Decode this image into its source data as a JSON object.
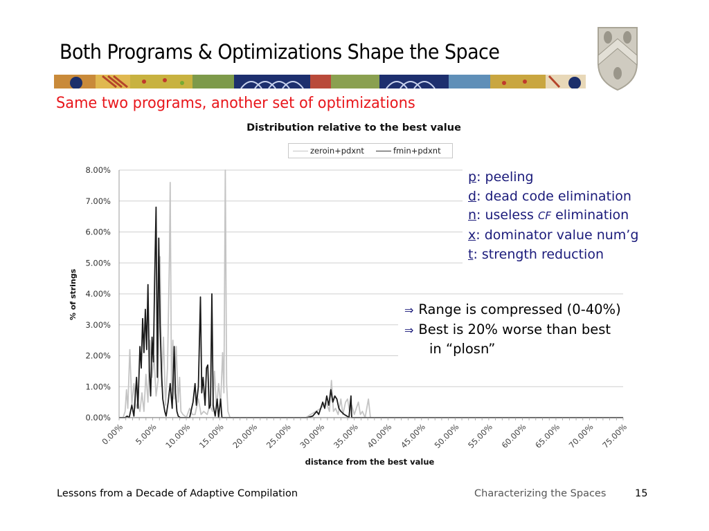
{
  "slide": {
    "title": "Both Programs & Optimizations Shape the Space",
    "subtitle": "Same two programs, another set of optimizations",
    "abbreviations": [
      {
        "key": "p",
        "text": ": peeling"
      },
      {
        "key": "d",
        "text": ": dead code elimination"
      },
      {
        "key": "n",
        "text": ": useless ",
        "cf": "CF",
        "text2": " elimination"
      },
      {
        "key": "x",
        "text": ": dominator value num’g"
      },
      {
        "key": "t",
        "text": ": strength reduction"
      }
    ],
    "bullets": [
      {
        "arrow": "⇒",
        "text": "Range is compressed (0-40%)"
      },
      {
        "arrow": "⇒",
        "text": "Best is 20% worse than best",
        "continuation": "in “plosn”"
      }
    ],
    "footer": {
      "left": "Lessons from a Decade of Adaptive Compilation",
      "right": "Characterizing the Spaces",
      "page": "15"
    },
    "crest_icon": "shield-crest-icon",
    "banner_icon": "decorative-pattern-banner",
    "colors": {
      "title": "#000000",
      "subtitle": "#e8161b",
      "abbrev": "#1a1a7a",
      "series_light": "#c4c4c4",
      "series_dark": "#1a1a1a"
    }
  },
  "chart_data": {
    "type": "line",
    "title": "Distribution relative to the best value",
    "xlabel": "distance from the best value",
    "ylabel": "% of strings",
    "xlim": [
      0,
      75
    ],
    "ylim": [
      0,
      8
    ],
    "grid": true,
    "legend": "top-center",
    "x_tick_labels": [
      "0.00%",
      "5.00%",
      "10.00%",
      "15.00%",
      "20.00%",
      "25.00%",
      "30.00%",
      "35.00%",
      "40.00%",
      "45.00%",
      "50.00%",
      "55.00%",
      "60.00%",
      "65.00%",
      "70.00%",
      "75.00%"
    ],
    "y_tick_labels": [
      "0.00%",
      "1.00%",
      "2.00%",
      "3.00%",
      "4.00%",
      "5.00%",
      "6.00%",
      "7.00%",
      "8.00%"
    ],
    "x_ticks": [
      0,
      5,
      10,
      15,
      20,
      25,
      30,
      35,
      40,
      45,
      50,
      55,
      60,
      65,
      70,
      75
    ],
    "y_ticks": [
      0,
      1,
      2,
      3,
      4,
      5,
      6,
      7,
      8
    ],
    "series": [
      {
        "name": "zeroin+pdxnt",
        "color": "#c4c4c4",
        "points": [
          [
            0,
            0
          ],
          [
            0.6,
            0
          ],
          [
            0.9,
            0.2
          ],
          [
            1.1,
            0.9
          ],
          [
            1.3,
            0.3
          ],
          [
            1.6,
            2.2
          ],
          [
            1.9,
            0.4
          ],
          [
            2.2,
            1.1
          ],
          [
            2.5,
            0.3
          ],
          [
            2.8,
            0.5
          ],
          [
            3.1,
            0.2
          ],
          [
            3.4,
            0.8
          ],
          [
            3.7,
            0.2
          ],
          [
            4.0,
            1.4
          ],
          [
            4.3,
            0.5
          ],
          [
            4.6,
            2.5
          ],
          [
            4.9,
            1.3
          ],
          [
            5.2,
            2.0
          ],
          [
            5.5,
            0.7
          ],
          [
            5.8,
            1.2
          ],
          [
            6.1,
            5.2
          ],
          [
            6.3,
            1.0
          ],
          [
            6.6,
            2.6
          ],
          [
            6.9,
            0.4
          ],
          [
            7.2,
            1.6
          ],
          [
            7.5,
            5.3
          ],
          [
            7.6,
            7.6
          ],
          [
            7.8,
            0.9
          ],
          [
            8.0,
            2.5
          ],
          [
            8.2,
            0.6
          ],
          [
            8.5,
            2.3
          ],
          [
            8.8,
            0.5
          ],
          [
            9.0,
            1.3
          ],
          [
            9.2,
            0.2
          ],
          [
            9.5,
            0.1
          ],
          [
            9.8,
            0.05
          ],
          [
            10.0,
            0
          ],
          [
            10.5,
            0.3
          ],
          [
            10.9,
            0.1
          ],
          [
            11.3,
            0.1
          ],
          [
            11.8,
            0.6
          ],
          [
            12.2,
            0.1
          ],
          [
            12.6,
            0.2
          ],
          [
            13.1,
            0.1
          ],
          [
            13.5,
            0.4
          ],
          [
            13.9,
            0.2
          ],
          [
            14.2,
            1.5
          ],
          [
            14.5,
            0.3
          ],
          [
            14.8,
            1.1
          ],
          [
            15.1,
            0.4
          ],
          [
            15.4,
            2.1
          ],
          [
            15.6,
            0.8
          ],
          [
            15.8,
            8.0
          ],
          [
            16.0,
            1.1
          ],
          [
            16.2,
            0.2
          ],
          [
            16.5,
            0
          ],
          [
            27.8,
            0
          ],
          [
            28.5,
            0.1
          ],
          [
            29.3,
            0.2
          ],
          [
            30.0,
            0.3
          ],
          [
            30.8,
            0.5
          ],
          [
            31.3,
            0.2
          ],
          [
            31.6,
            1.2
          ],
          [
            31.9,
            0.2
          ],
          [
            32.2,
            0.3
          ],
          [
            32.6,
            0.1
          ],
          [
            33.0,
            0.6
          ],
          [
            33.3,
            0.1
          ],
          [
            33.7,
            0.5
          ],
          [
            34.0,
            0.6
          ],
          [
            34.3,
            0.2
          ],
          [
            34.6,
            0.4
          ],
          [
            35.0,
            0.1
          ],
          [
            35.3,
            0.3
          ],
          [
            35.6,
            0.5
          ],
          [
            35.9,
            0.1
          ],
          [
            36.2,
            0.2
          ],
          [
            36.6,
            0
          ],
          [
            37.1,
            0.6
          ],
          [
            37.4,
            0
          ],
          [
            75,
            0
          ]
        ]
      },
      {
        "name": "fmin+pdxnt",
        "color": "#1a1a1a",
        "points": [
          [
            0,
            0
          ],
          [
            0.9,
            0
          ],
          [
            1.2,
            0.05
          ],
          [
            1.5,
            0
          ],
          [
            1.9,
            0.4
          ],
          [
            2.2,
            0.05
          ],
          [
            2.6,
            1.3
          ],
          [
            2.8,
            0.3
          ],
          [
            3.1,
            2.3
          ],
          [
            3.3,
            1.6
          ],
          [
            3.5,
            3.2
          ],
          [
            3.7,
            2.1
          ],
          [
            3.9,
            3.5
          ],
          [
            4.1,
            2.2
          ],
          [
            4.3,
            4.3
          ],
          [
            4.5,
            1.5
          ],
          [
            4.7,
            0.7
          ],
          [
            4.9,
            2.6
          ],
          [
            5.1,
            1.8
          ],
          [
            5.3,
            4.5
          ],
          [
            5.5,
            6.8
          ],
          [
            5.7,
            1.3
          ],
          [
            5.9,
            5.8
          ],
          [
            6.1,
            3.0
          ],
          [
            6.3,
            1.5
          ],
          [
            6.5,
            0.6
          ],
          [
            6.8,
            0.2
          ],
          [
            7.0,
            0.05
          ],
          [
            7.3,
            0.5
          ],
          [
            7.6,
            1.1
          ],
          [
            7.9,
            0.3
          ],
          [
            8.2,
            2.3
          ],
          [
            8.4,
            0.8
          ],
          [
            8.6,
            0.2
          ],
          [
            8.8,
            0.05
          ],
          [
            9.1,
            0
          ],
          [
            10.5,
            0
          ],
          [
            10.8,
            0.3
          ],
          [
            11.0,
            0.5
          ],
          [
            11.3,
            1.1
          ],
          [
            11.5,
            0.4
          ],
          [
            11.8,
            1.0
          ],
          [
            12.1,
            3.9
          ],
          [
            12.3,
            0.8
          ],
          [
            12.5,
            1.3
          ],
          [
            12.8,
            0.4
          ],
          [
            13.0,
            1.6
          ],
          [
            13.2,
            1.7
          ],
          [
            13.4,
            0.3
          ],
          [
            13.6,
            0.4
          ],
          [
            13.8,
            4.0
          ],
          [
            14.0,
            0.4
          ],
          [
            14.3,
            0.05
          ],
          [
            14.6,
            0.6
          ],
          [
            14.8,
            0
          ],
          [
            15.1,
            0.6
          ],
          [
            15.3,
            0
          ],
          [
            28.0,
            0
          ],
          [
            28.8,
            0.05
          ],
          [
            29.4,
            0.2
          ],
          [
            29.7,
            0.1
          ],
          [
            30.0,
            0.3
          ],
          [
            30.3,
            0.5
          ],
          [
            30.6,
            0.3
          ],
          [
            30.9,
            0.7
          ],
          [
            31.2,
            0.4
          ],
          [
            31.5,
            0.9
          ],
          [
            31.8,
            0.5
          ],
          [
            32.1,
            0.7
          ],
          [
            32.4,
            0.6
          ],
          [
            32.7,
            0.3
          ],
          [
            33.0,
            0.2
          ],
          [
            33.5,
            0.1
          ],
          [
            33.9,
            0.05
          ],
          [
            34.2,
            0
          ],
          [
            34.5,
            0.7
          ],
          [
            34.6,
            0
          ],
          [
            75,
            0
          ]
        ]
      }
    ]
  }
}
